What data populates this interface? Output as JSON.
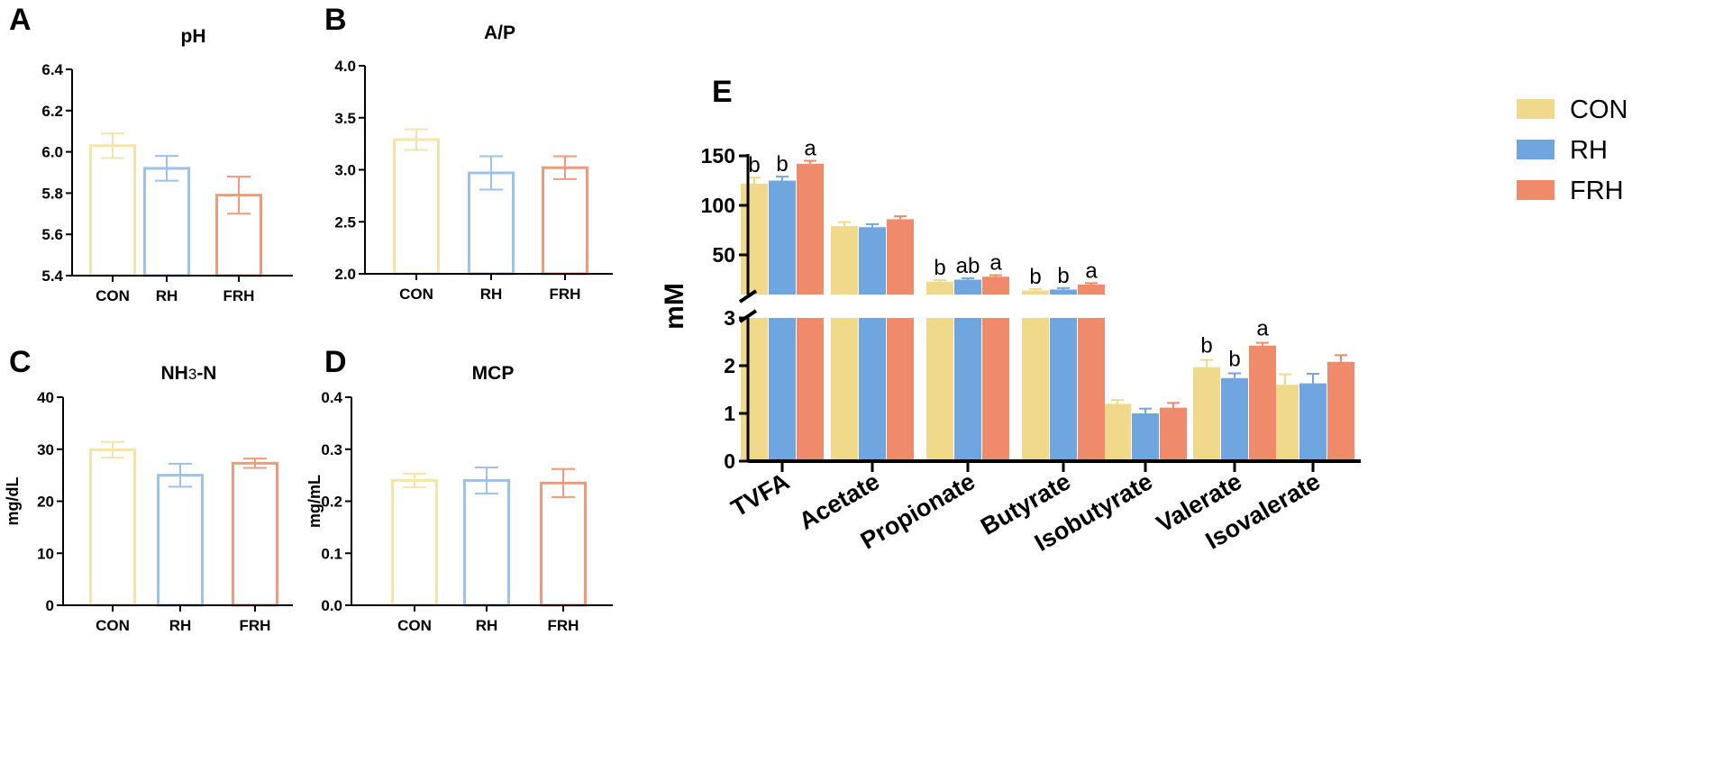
{
  "colors": {
    "CON": "#f0d98a",
    "RH": "#6fa6e0",
    "FRH": "#ef8a6a",
    "CON_light": "#f6e5a8",
    "RH_light": "#9cc1ea",
    "FRH_light": "#f2997c",
    "axis": "#000000"
  },
  "chart_data": [
    {
      "id": "A",
      "letter": "A",
      "type": "bar",
      "title": "pH",
      "ylabel": "",
      "categories": [
        "CON",
        "RH",
        "FRH"
      ],
      "values": [
        6.03,
        5.92,
        5.79
      ],
      "errors": [
        0.06,
        0.06,
        0.09
      ],
      "ylim": [
        5.4,
        6.4
      ],
      "ticks": [
        5.4,
        5.6,
        5.8,
        6.0,
        6.2,
        6.4
      ],
      "tick_labels": [
        "5.4",
        "5.6",
        "5.8",
        "6.0",
        "6.2",
        "6.4"
      ]
    },
    {
      "id": "B",
      "letter": "B",
      "type": "bar",
      "title": "A/P",
      "ylabel": "",
      "categories": [
        "CON",
        "RH",
        "FRH"
      ],
      "values": [
        3.29,
        2.97,
        3.02
      ],
      "errors": [
        0.1,
        0.16,
        0.11
      ],
      "ylim": [
        2.0,
        4.0
      ],
      "ticks": [
        2.0,
        2.5,
        3.0,
        3.5,
        4.0
      ],
      "tick_labels": [
        "2.0",
        "2.5",
        "3.0",
        "3.5",
        "4.0"
      ]
    },
    {
      "id": "C",
      "letter": "C",
      "type": "bar",
      "title": "NH3-N",
      "ylabel": "mg/dL",
      "categories": [
        "CON",
        "RH",
        "FRH"
      ],
      "values": [
        29.9,
        25.0,
        27.3
      ],
      "errors": [
        1.5,
        2.2,
        0.9
      ],
      "ylim": [
        0,
        40
      ],
      "ticks": [
        0,
        10,
        20,
        30,
        40
      ],
      "tick_labels": [
        "0",
        "10",
        "20",
        "30",
        "40"
      ]
    },
    {
      "id": "D",
      "letter": "D",
      "type": "bar",
      "title": "MCP",
      "ylabel": "mg/mL",
      "categories": [
        "CON",
        "RH",
        "FRH"
      ],
      "values": [
        0.24,
        0.24,
        0.235
      ],
      "errors": [
        0.013,
        0.025,
        0.027
      ],
      "ylim": [
        0,
        0.4
      ],
      "ticks": [
        0.0,
        0.1,
        0.2,
        0.3,
        0.4
      ],
      "tick_labels": [
        "0.0",
        "0.1",
        "0.2",
        "0.3",
        "0.4"
      ]
    },
    {
      "id": "E",
      "letter": "E",
      "type": "bar",
      "title": "",
      "ylabel": "mM",
      "categories": [
        "TVFA",
        "Acetate",
        "Propionate",
        "Butyrate",
        "Isobutyrate",
        "Valerate",
        "Isovalerate"
      ],
      "series": [
        {
          "name": "CON",
          "values": [
            122,
            79,
            23,
            14,
            1.2,
            1.97,
            1.6
          ],
          "errors": [
            6,
            4,
            1.5,
            1.5,
            0.08,
            0.15,
            0.22
          ],
          "labels": [
            "b",
            "",
            "b",
            "b",
            "",
            "b",
            ""
          ]
        },
        {
          "name": "RH",
          "values": [
            125,
            78,
            25,
            15,
            1.0,
            1.74,
            1.63
          ],
          "errors": [
            4,
            3,
            1.5,
            1.5,
            0.1,
            0.1,
            0.2
          ],
          "labels": [
            "b",
            "",
            "ab",
            "b",
            "",
            "b",
            ""
          ]
        },
        {
          "name": "FRH",
          "values": [
            142,
            86,
            28,
            20,
            1.12,
            2.42,
            2.08
          ],
          "errors": [
            3,
            3,
            1.5,
            1.5,
            0.1,
            0.06,
            0.14
          ],
          "labels": [
            "a",
            "",
            "a",
            "a",
            "",
            "a",
            ""
          ]
        }
      ],
      "broken_axis": {
        "lower": [
          0,
          3
        ],
        "upper": [
          10,
          150
        ]
      },
      "lower_ticks": [
        0,
        1,
        2,
        3
      ],
      "lower_tick_labels": [
        "0",
        "1",
        "2",
        "3"
      ],
      "upper_ticks": [
        50,
        100,
        150
      ],
      "upper_tick_labels": [
        "50",
        "100",
        "150"
      ],
      "legend": [
        "CON",
        "RH",
        "FRH"
      ]
    }
  ]
}
